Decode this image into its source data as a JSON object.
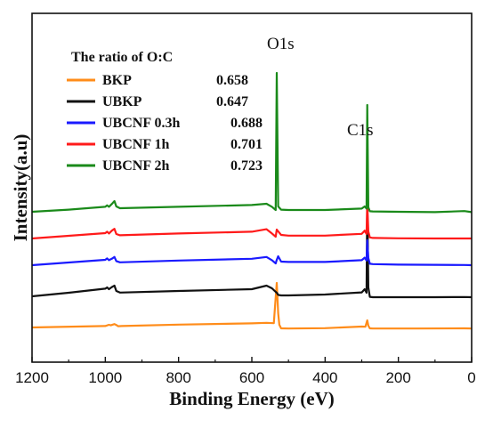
{
  "chart_data": {
    "type": "line",
    "xlabel": "Binding Energy (eV)",
    "ylabel": "Intensity(a.u)",
    "xlim": [
      1200,
      0
    ],
    "x_reversed": true,
    "x_ticks": [
      "1200",
      "1000",
      "800",
      "600",
      "400",
      "200",
      "0"
    ],
    "y_ticks_shown": false,
    "grid": false,
    "legend": {
      "title": "The ratio of O:C",
      "placement": "top-left",
      "entries": [
        {
          "label": "BKP",
          "value": "0.658"
        },
        {
          "label": "UBKP",
          "value": "0.647"
        },
        {
          "label": "UBCNF 0.3h",
          "value": "0.688"
        },
        {
          "label": "UBCNF 1h",
          "value": "0.701"
        },
        {
          "label": "UBCNF 2h",
          "value": "0.723"
        }
      ]
    },
    "annotations": [
      {
        "text": "O1s",
        "x": 532
      },
      {
        "text": "C1s",
        "x": 285
      }
    ],
    "series": [
      {
        "name": "BKP",
        "color": "#ff8c1a",
        "offset": 0,
        "x": [
          1200,
          1000,
          990,
          985,
          975,
          970,
          965,
          955,
          800,
          600,
          560,
          540,
          532,
          528,
          525,
          520,
          500,
          400,
          300,
          290,
          285,
          282,
          278,
          270,
          200,
          150,
          20,
          0
        ],
        "y": [
          0.0,
          0.8,
          1.5,
          1.2,
          1.9,
          1.4,
          0.7,
          0.8,
          1.6,
          2.3,
          2.6,
          2.4,
          25,
          8,
          1.5,
          -0.5,
          -0.6,
          -0.4,
          0.5,
          0.4,
          4,
          1.0,
          -0.5,
          -0.6,
          -0.6,
          -0.6,
          -0.5,
          -0.6
        ]
      },
      {
        "name": "UBKP",
        "color": "#111111",
        "offset": 35,
        "x": [
          1200,
          1100,
          1000,
          995,
          990,
          982,
          975,
          970,
          960,
          800,
          600,
          560,
          545,
          535,
          532,
          528,
          520,
          500,
          400,
          300,
          292,
          287,
          285,
          282,
          278,
          270,
          200,
          150,
          100,
          20,
          0
        ],
        "y": [
          0.0,
          2.0,
          4.3,
          5.0,
          4.0,
          5.2,
          6.0,
          3.0,
          2.1,
          3.0,
          4.0,
          6.0,
          4.5,
          2.5,
          2.0,
          0.8,
          0.5,
          0.5,
          1.0,
          2.2,
          4.0,
          2.0,
          55,
          5.0,
          -0.3,
          -0.5,
          -0.5,
          -0.5,
          -0.5,
          -0.4,
          -0.5
        ]
      },
      {
        "name": "UBCNF 0.3h",
        "color": "#1a1aff",
        "offset": 70,
        "x": [
          1200,
          1100,
          1000,
          995,
          990,
          982,
          975,
          970,
          960,
          800,
          600,
          560,
          545,
          535,
          532,
          528,
          520,
          500,
          400,
          300,
          292,
          287,
          285,
          282,
          278,
          270,
          200,
          100,
          20,
          0
        ],
        "y": [
          0.0,
          1.5,
          3.0,
          3.8,
          2.8,
          3.6,
          4.6,
          2.3,
          1.6,
          2.6,
          3.6,
          4.6,
          2.8,
          1.0,
          3.0,
          5.0,
          2.0,
          1.8,
          1.8,
          2.8,
          4.2,
          2.6,
          14,
          4.0,
          0.8,
          0.6,
          0.3,
          0.2,
          0.1,
          0.0
        ]
      },
      {
        "name": "UBCNF 1h",
        "color": "#ff1a1a",
        "offset": 100,
        "x": [
          1200,
          1100,
          1000,
          995,
          990,
          982,
          975,
          970,
          960,
          800,
          600,
          560,
          545,
          535,
          532,
          528,
          520,
          500,
          400,
          300,
          292,
          287,
          285,
          282,
          278,
          270,
          200,
          100,
          20,
          0
        ],
        "y": [
          0.0,
          1.5,
          3.0,
          3.8,
          2.8,
          4.4,
          5.4,
          2.5,
          1.8,
          2.8,
          3.8,
          5.2,
          2.8,
          1.0,
          5.0,
          4.0,
          2.0,
          1.6,
          1.6,
          2.6,
          4.4,
          2.5,
          20,
          4.0,
          0.6,
          0.3,
          0.1,
          0.0,
          0.0,
          0.0
        ]
      },
      {
        "name": "UBCNF 2h",
        "color": "#1a8a1a",
        "offset": 130,
        "x": [
          1200,
          1100,
          1000,
          995,
          990,
          982,
          975,
          970,
          960,
          800,
          600,
          560,
          545,
          535,
          532,
          528,
          520,
          500,
          400,
          300,
          292,
          287,
          285,
          282,
          278,
          270,
          200,
          100,
          20,
          0
        ],
        "y": [
          0.0,
          1.2,
          2.8,
          3.6,
          2.8,
          4.4,
          6.0,
          3.0,
          2.0,
          2.8,
          3.8,
          4.5,
          2.8,
          1.0,
          78,
          3.0,
          1.2,
          1.0,
          1.0,
          1.8,
          3.0,
          1.8,
          60,
          2.5,
          0.3,
          0.2,
          0.0,
          -0.2,
          0.4,
          -0.2
        ]
      }
    ]
  }
}
